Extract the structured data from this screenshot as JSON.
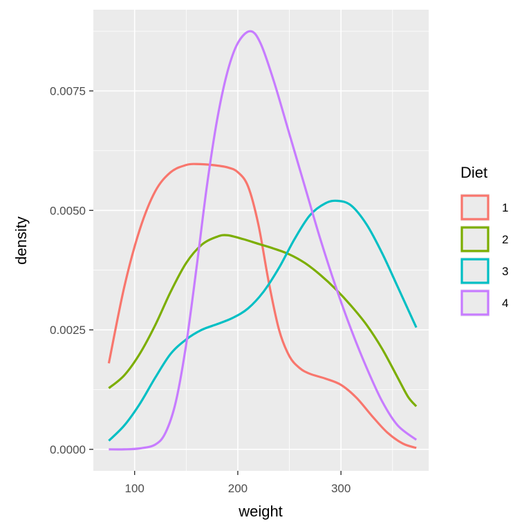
{
  "chart_data": {
    "type": "line",
    "subtype": "density",
    "title": "",
    "xlabel": "weight",
    "ylabel": "density",
    "xlim": [
      60,
      385
    ],
    "ylim": [
      -0.00045,
      0.0092
    ],
    "x_ticks": [
      100,
      200,
      300
    ],
    "x_tick_labels": [
      "100",
      "200",
      "300"
    ],
    "y_ticks": [
      0,
      0.0025,
      0.005,
      0.0075
    ],
    "y_tick_labels": [
      "0.0000",
      "0.0025",
      "0.0050",
      "0.0075"
    ],
    "grid": true,
    "legend": {
      "title": "Diet",
      "position": "right"
    },
    "series": [
      {
        "name": "1",
        "color": "#F8766D",
        "points": [
          [
            75,
            0.0018
          ],
          [
            90,
            0.0034
          ],
          [
            105,
            0.0046
          ],
          [
            120,
            0.0054
          ],
          [
            135,
            0.0058
          ],
          [
            150,
            0.00595
          ],
          [
            160,
            0.00597
          ],
          [
            175,
            0.00595
          ],
          [
            190,
            0.0059
          ],
          [
            200,
            0.0058
          ],
          [
            210,
            0.0055
          ],
          [
            220,
            0.0047
          ],
          [
            230,
            0.0035
          ],
          [
            240,
            0.0025
          ],
          [
            250,
            0.00195
          ],
          [
            260,
            0.0017
          ],
          [
            270,
            0.00158
          ],
          [
            285,
            0.00148
          ],
          [
            300,
            0.00135
          ],
          [
            315,
            0.00108
          ],
          [
            330,
            0.0007
          ],
          [
            345,
            0.00035
          ],
          [
            360,
            0.00012
          ],
          [
            373,
            3e-05
          ]
        ]
      },
      {
        "name": "2",
        "color": "#7CAE00",
        "points": [
          [
            75,
            0.00128
          ],
          [
            90,
            0.00155
          ],
          [
            105,
            0.002
          ],
          [
            120,
            0.0026
          ],
          [
            135,
            0.0033
          ],
          [
            150,
            0.0039
          ],
          [
            165,
            0.00428
          ],
          [
            180,
            0.00445
          ],
          [
            190,
            0.00448
          ],
          [
            205,
            0.0044
          ],
          [
            220,
            0.0043
          ],
          [
            235,
            0.0042
          ],
          [
            250,
            0.00408
          ],
          [
            265,
            0.0039
          ],
          [
            280,
            0.00365
          ],
          [
            295,
            0.00335
          ],
          [
            310,
            0.003
          ],
          [
            325,
            0.0026
          ],
          [
            340,
            0.0021
          ],
          [
            355,
            0.0015
          ],
          [
            365,
            0.0011
          ],
          [
            373,
            0.0009
          ]
        ]
      },
      {
        "name": "3",
        "color": "#00BFC4",
        "points": [
          [
            75,
            0.00018
          ],
          [
            90,
            0.0005
          ],
          [
            105,
            0.00095
          ],
          [
            120,
            0.0015
          ],
          [
            135,
            0.002
          ],
          [
            150,
            0.0023
          ],
          [
            165,
            0.0025
          ],
          [
            180,
            0.00262
          ],
          [
            195,
            0.00275
          ],
          [
            210,
            0.00295
          ],
          [
            225,
            0.0033
          ],
          [
            240,
            0.0038
          ],
          [
            255,
            0.0044
          ],
          [
            270,
            0.0049
          ],
          [
            285,
            0.00515
          ],
          [
            297,
            0.0052
          ],
          [
            310,
            0.0051
          ],
          [
            325,
            0.0047
          ],
          [
            340,
            0.0041
          ],
          [
            355,
            0.0034
          ],
          [
            373,
            0.00255
          ]
        ]
      },
      {
        "name": "4",
        "color": "#C77CFF",
        "points": [
          [
            75,
            0.0
          ],
          [
            90,
            0.0
          ],
          [
            105,
            2e-05
          ],
          [
            120,
            0.0001
          ],
          [
            130,
            0.00035
          ],
          [
            140,
            0.001
          ],
          [
            150,
            0.0022
          ],
          [
            160,
            0.0038
          ],
          [
            170,
            0.0055
          ],
          [
            180,
            0.0069
          ],
          [
            190,
            0.0079
          ],
          [
            200,
            0.0085
          ],
          [
            212,
            0.00875
          ],
          [
            222,
            0.0085
          ],
          [
            235,
            0.0077
          ],
          [
            250,
            0.0066
          ],
          [
            265,
            0.0055
          ],
          [
            280,
            0.0044
          ],
          [
            295,
            0.0034
          ],
          [
            310,
            0.0025
          ],
          [
            325,
            0.0017
          ],
          [
            340,
            0.001
          ],
          [
            355,
            0.0005
          ],
          [
            373,
            0.0002
          ]
        ]
      }
    ]
  }
}
